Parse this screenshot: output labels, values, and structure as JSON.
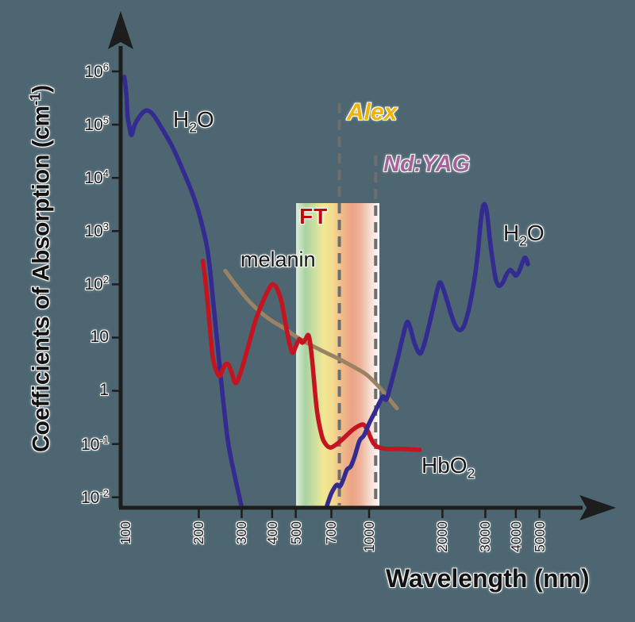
{
  "axes": {
    "y": {
      "title_pre": "Coefficients of Absorption (cm",
      "title_sup": "-1",
      "title_post": ")",
      "scale": "log",
      "tick_exponents": [
        6,
        5,
        4,
        3,
        2,
        1,
        0,
        -1,
        -2
      ]
    },
    "x": {
      "title": "Wavelength (nm)",
      "scale": "log",
      "ticks": [
        100,
        200,
        300,
        400,
        500,
        700,
        1000,
        2000,
        3000,
        4000,
        5000
      ]
    }
  },
  "labels": {
    "h2o_left": {
      "pre": "H",
      "sub": "2",
      "post": "O"
    },
    "h2o_right": {
      "pre": "H",
      "sub": "2",
      "post": "O"
    },
    "melanin": "melanin",
    "hbo2": {
      "pre": "HbO",
      "sub": "2",
      "post": ""
    }
  },
  "lasers": [
    {
      "name": "Alex",
      "wavelength_nm": 755,
      "color": "#EFB303"
    },
    {
      "name": "Nd:YAG",
      "wavelength_nm": 1064,
      "color": "#A4639B"
    }
  ],
  "band": {
    "label": "FT",
    "label_color": "#C00909",
    "range_nm": [
      500,
      1100
    ],
    "gradient": [
      "#dcecd4",
      "#a9d2a2",
      "#cadf9e",
      "#f2e892",
      "#f3d98e",
      "#efb989",
      "#eba383",
      "#eeb49c",
      "#f6dcd2",
      "#fdf9f7"
    ]
  },
  "chart_data": {
    "type": "line",
    "x_scale": "log",
    "y_scale": "log",
    "xlabel": "Wavelength (nm)",
    "ylabel": "Coefficients of Absorption (cm-1)",
    "xlim": [
      95,
      9800
    ],
    "ylim": [
      0.007,
      1000000
    ],
    "x_ticks": [
      100,
      200,
      300,
      400,
      500,
      700,
      1000,
      2000,
      3000,
      4000,
      5000
    ],
    "y_ticks": [
      1000000,
      100000,
      10000,
      1000,
      100,
      10,
      1,
      0.1,
      0.01
    ],
    "legend": "labels drawn beside curves",
    "series": [
      {
        "name": "melanin",
        "color": "#9A8262",
        "width": 5,
        "points": [
          [
            257,
            180
          ],
          [
            286,
            93
          ],
          [
            317,
            52
          ],
          [
            355,
            31
          ],
          [
            397,
            21
          ],
          [
            448,
            15
          ],
          [
            509,
            10
          ],
          [
            578,
            7.2
          ],
          [
            660,
            5.3
          ],
          [
            757,
            3.9
          ],
          [
            866,
            2.8
          ],
          [
            978,
            2.0
          ],
          [
            1105,
            1.15
          ],
          [
            1230,
            0.64
          ],
          [
            1300,
            0.47
          ]
        ]
      },
      {
        "name": "H2O (UV side)",
        "color": "#332B8F",
        "width": 5.5,
        "points": [
          [
            99,
            790000
          ],
          [
            101,
            360000
          ],
          [
            102,
            150000
          ],
          [
            104,
            87000
          ],
          [
            106,
            64000
          ],
          [
            109,
            97000
          ],
          [
            114,
            140000
          ],
          [
            120,
            180000
          ],
          [
            125,
            180000
          ],
          [
            132,
            140000
          ],
          [
            142,
            81000
          ],
          [
            156,
            38000
          ],
          [
            172,
            14000
          ],
          [
            188,
            5200
          ],
          [
            202,
            1900
          ],
          [
            218,
            400
          ],
          [
            231,
            34
          ],
          [
            245,
            2.2
          ],
          [
            263,
            0.12
          ],
          [
            281,
            0.025
          ],
          [
            299,
            0.007
          ]
        ]
      },
      {
        "name": "HbO2",
        "color": "#C41420",
        "width": 5.5,
        "points": [
          [
            208,
            275
          ],
          [
            213,
            113
          ],
          [
            218,
            41
          ],
          [
            223,
            12.4
          ],
          [
            228,
            4.4
          ],
          [
            235,
            2.5
          ],
          [
            244,
            1.9
          ],
          [
            253,
            2.8
          ],
          [
            263,
            3.2
          ],
          [
            273,
            2.2
          ],
          [
            283,
            1.4
          ],
          [
            297,
            2.2
          ],
          [
            317,
            6.1
          ],
          [
            342,
            21
          ],
          [
            369,
            51
          ],
          [
            392,
            89
          ],
          [
            404,
            100
          ],
          [
            419,
            83
          ],
          [
            438,
            45
          ],
          [
            462,
            12
          ],
          [
            483,
            5.3
          ],
          [
            501,
            6.9
          ],
          [
            516,
            9.3
          ],
          [
            532,
            8.0
          ],
          [
            548,
            9.3
          ],
          [
            566,
            10.7
          ],
          [
            583,
            4.0
          ],
          [
            610,
            0.45
          ],
          [
            638,
            0.15
          ],
          [
            663,
            0.1
          ],
          [
            695,
            0.086
          ],
          [
            737,
            0.1
          ],
          [
            788,
            0.13
          ],
          [
            850,
            0.18
          ],
          [
            908,
            0.22
          ],
          [
            950,
            0.23
          ],
          [
            985,
            0.18
          ],
          [
            1016,
            0.13
          ],
          [
            1048,
            0.1
          ],
          [
            1095,
            0.087
          ],
          [
            1180,
            0.081
          ],
          [
            1345,
            0.081
          ],
          [
            1610,
            0.078
          ]
        ]
      },
      {
        "name": "H2O (IR side)",
        "color": "#332B8F",
        "width": 5.5,
        "points": [
          [
            672,
            0.007
          ],
          [
            701,
            0.012
          ],
          [
            736,
            0.017
          ],
          [
            759,
            0.016
          ],
          [
            782,
            0.021
          ],
          [
            811,
            0.033
          ],
          [
            841,
            0.038
          ],
          [
            873,
            0.059
          ],
          [
            913,
            0.115
          ],
          [
            953,
            0.146
          ],
          [
            1003,
            0.25
          ],
          [
            1054,
            0.39
          ],
          [
            1101,
            0.59
          ],
          [
            1142,
            0.78
          ],
          [
            1176,
            0.68
          ],
          [
            1211,
            1.03
          ],
          [
            1258,
            1.98
          ],
          [
            1316,
            4.4
          ],
          [
            1375,
            10.4
          ],
          [
            1430,
            19.4
          ],
          [
            1473,
            15.7
          ],
          [
            1529,
            8.4
          ],
          [
            1587,
            5.5
          ],
          [
            1634,
            5.2
          ],
          [
            1695,
            8.4
          ],
          [
            1771,
            18.6
          ],
          [
            1852,
            45
          ],
          [
            1924,
            94
          ],
          [
            1967,
            107
          ],
          [
            2027,
            76
          ],
          [
            2104,
            44
          ],
          [
            2184,
            25
          ],
          [
            2266,
            16.4
          ],
          [
            2351,
            13.8
          ],
          [
            2437,
            15.8
          ],
          [
            2527,
            25.6
          ],
          [
            2621,
            54
          ],
          [
            2718,
            142
          ],
          [
            2800,
            427
          ],
          [
            2862,
            1280
          ],
          [
            2925,
            2740
          ],
          [
            2990,
            3140
          ],
          [
            3057,
            1940
          ],
          [
            3126,
            740
          ],
          [
            3219,
            265
          ],
          [
            3312,
            124
          ],
          [
            3410,
            94
          ],
          [
            3534,
            107
          ],
          [
            3661,
            152
          ],
          [
            3790,
            186
          ],
          [
            3895,
            168
          ],
          [
            4000,
            146
          ],
          [
            4110,
            168
          ],
          [
            4222,
            230
          ],
          [
            4337,
            313
          ],
          [
            4425,
            292
          ],
          [
            4483,
            238
          ]
        ]
      }
    ],
    "annotations": [
      {
        "text": "Alex",
        "wavelength_nm": 755,
        "style": "dashed vertical line"
      },
      {
        "text": "Nd:YAG",
        "wavelength_nm": 1064,
        "style": "dashed vertical line"
      },
      {
        "text": "FT",
        "band_nm": [
          500,
          1100
        ],
        "style": "rainbow shaded band"
      }
    ]
  }
}
